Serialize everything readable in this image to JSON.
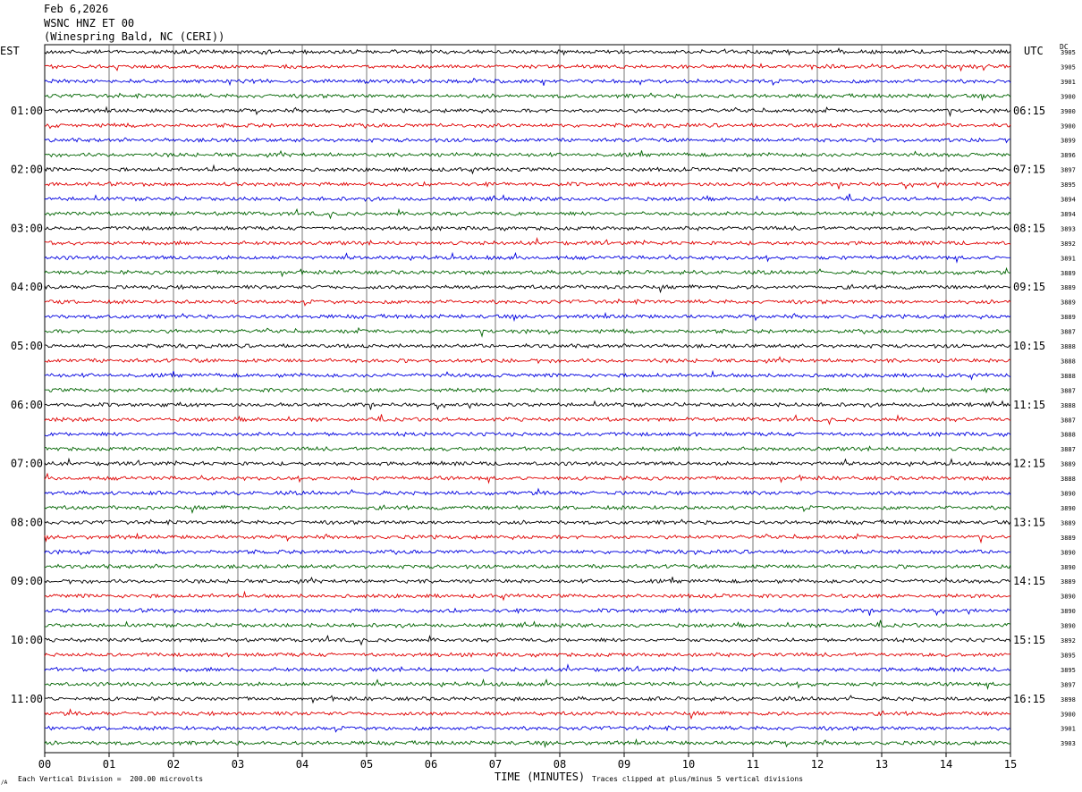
{
  "header": {
    "date": "Feb 6,2026",
    "station": "WSNC HNZ ET 00",
    "location": "(Winespring Bald, NC (CERI))"
  },
  "labels": {
    "left_tz": "EST",
    "right_tz": "UTC",
    "dc_header": "DC",
    "xlabel": "TIME (MINUTES)",
    "scale_note": "Each Vertical Division =  200.00 microvolts",
    "clip_note": "Traces clipped at plus/minus 5 vertical divisions",
    "corner_mark": "/A"
  },
  "colors": {
    "trace_cycle": [
      "#000000",
      "#e00000",
      "#0000e0",
      "#006400"
    ],
    "grid": "#000000",
    "background": "#ffffff"
  },
  "chart_data": {
    "type": "line",
    "title": "WSNC HNZ ET 00",
    "xlabel": "TIME (MINUTES)",
    "xlim": [
      0,
      15
    ],
    "x_ticks": [
      "00",
      "01",
      "02",
      "03",
      "04",
      "05",
      "06",
      "07",
      "08",
      "09",
      "10",
      "11",
      "12",
      "13",
      "14",
      "15"
    ],
    "trace_minutes": 15,
    "trace_count": 48,
    "left_time_labels": [
      "01:00",
      "02:00",
      "03:00",
      "04:00",
      "05:00",
      "06:00",
      "07:00",
      "08:00",
      "09:00",
      "10:00",
      "11:00"
    ],
    "right_time_labels": [
      "06:15",
      "07:15",
      "08:15",
      "09:15",
      "10:15",
      "11:15",
      "12:15",
      "13:15",
      "14:15",
      "15:15",
      "16:15"
    ],
    "label_every_n_traces": 4,
    "first_label_trace": 4,
    "dc_offsets": [
      3905,
      3905,
      3901,
      3900,
      3900,
      3900,
      3899,
      3896,
      3897,
      3895,
      3894,
      3894,
      3893,
      3892,
      3891,
      3889,
      3889,
      3889,
      3889,
      3887,
      3888,
      3888,
      3888,
      3887,
      3888,
      3887,
      3888,
      3887,
      3889,
      3888,
      3890,
      3890,
      3889,
      3889,
      3890,
      3890,
      3889,
      3890,
      3890,
      3890,
      3892,
      3895,
      3895,
      3897,
      3898,
      3900,
      3901,
      3903
    ],
    "scale_microvolts_per_division": 200.0,
    "clip_divisions": 5
  }
}
